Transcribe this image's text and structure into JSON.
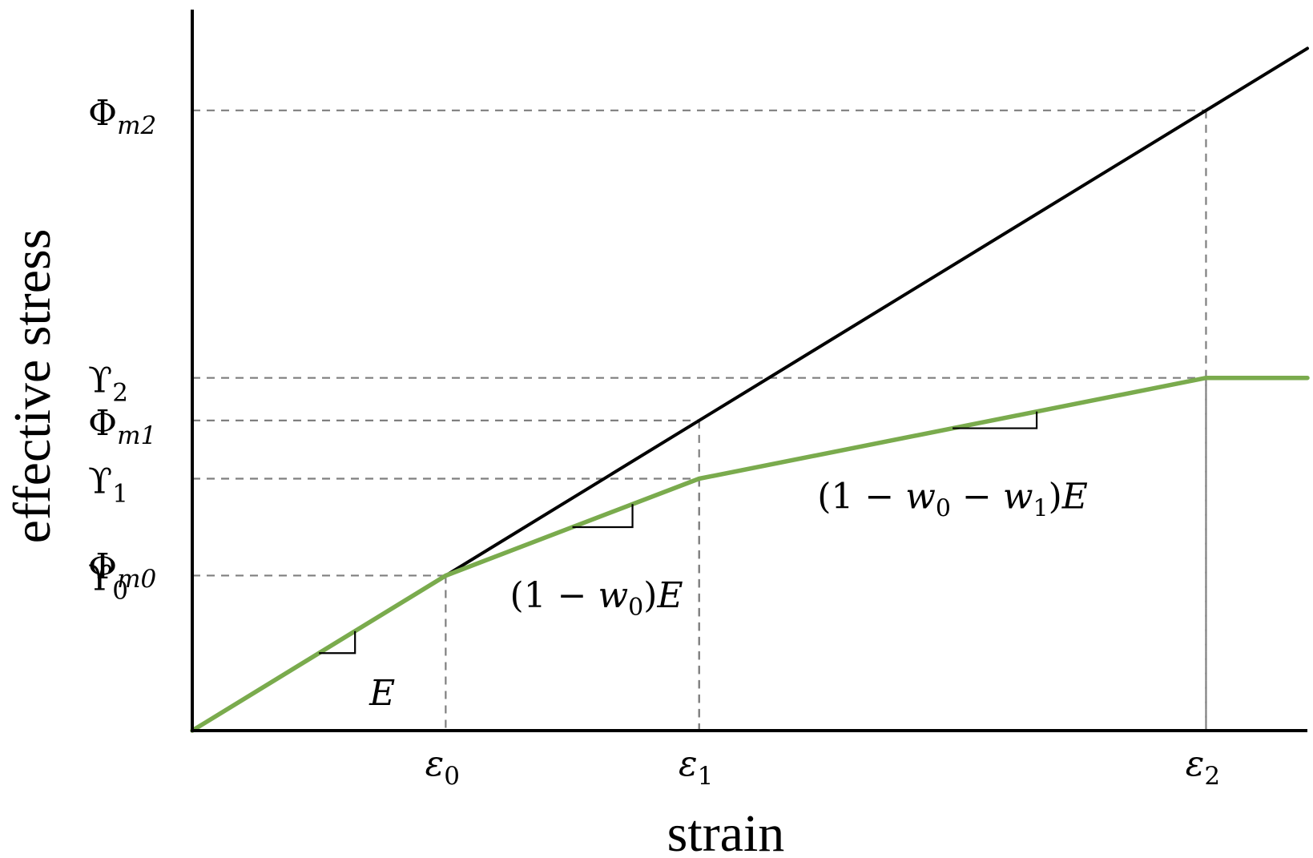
{
  "chart_data": {
    "type": "line",
    "xlabel": "strain",
    "ylabel": "effective stress",
    "x_ticks": [
      {
        "base": "ε",
        "sub": "0",
        "x": 1
      },
      {
        "base": "ε",
        "sub": "1",
        "x": 2
      },
      {
        "base": "ε",
        "sub": "2",
        "x": 4
      }
    ],
    "y_ticks": [
      {
        "base": "Φ",
        "sub": "m2",
        "y": 8
      },
      {
        "base": "ϒ",
        "sub": "2",
        "y": 4.55
      },
      {
        "base": "Φ",
        "sub": "m1",
        "y": 4
      },
      {
        "base": "ϒ",
        "sub": "1",
        "y": 3.25
      },
      {
        "base": "Φ",
        "sub": "m0",
        "y": 2.15
      },
      {
        "base": "ϒ",
        "sub": "0",
        "y": 2
      }
    ],
    "xlim": [
      0,
      4.4
    ],
    "ylim": [
      0,
      9.3
    ],
    "grid": false,
    "series": [
      {
        "color": "#000000",
        "x": [
          0,
          4.4
        ],
        "y": [
          0,
          8.8
        ]
      },
      {
        "color": "#7aab4d",
        "x": [
          0,
          1,
          2,
          4,
          4.4
        ],
        "y": [
          0,
          2,
          3.25,
          4.55,
          4.55
        ]
      }
    ],
    "guides": [
      {
        "x": 1,
        "y": 2
      },
      {
        "x": 2,
        "y": 4
      },
      {
        "x": 2,
        "y": 3.25
      },
      {
        "x": 4,
        "y": 8
      },
      {
        "x": 4,
        "y": 4.55
      }
    ],
    "slope_annotations": [
      {
        "segment": 0,
        "at": 0.5,
        "parts": [
          {
            "t": "E"
          }
        ]
      },
      {
        "segment": 1,
        "at": 1.5,
        "parts": [
          {
            "t": "(1 − "
          },
          {
            "t": "w"
          },
          {
            "t": "0",
            "sub": true
          },
          {
            "t": ")"
          },
          {
            "t": "E"
          }
        ]
      },
      {
        "segment": 2,
        "at": 3.0,
        "parts": [
          {
            "t": "(1 − "
          },
          {
            "t": "w"
          },
          {
            "t": "0",
            "sub": true
          },
          {
            "t": " − "
          },
          {
            "t": "w"
          },
          {
            "t": "1",
            "sub": true
          },
          {
            "t": ")"
          },
          {
            "t": "E"
          }
        ]
      }
    ]
  }
}
